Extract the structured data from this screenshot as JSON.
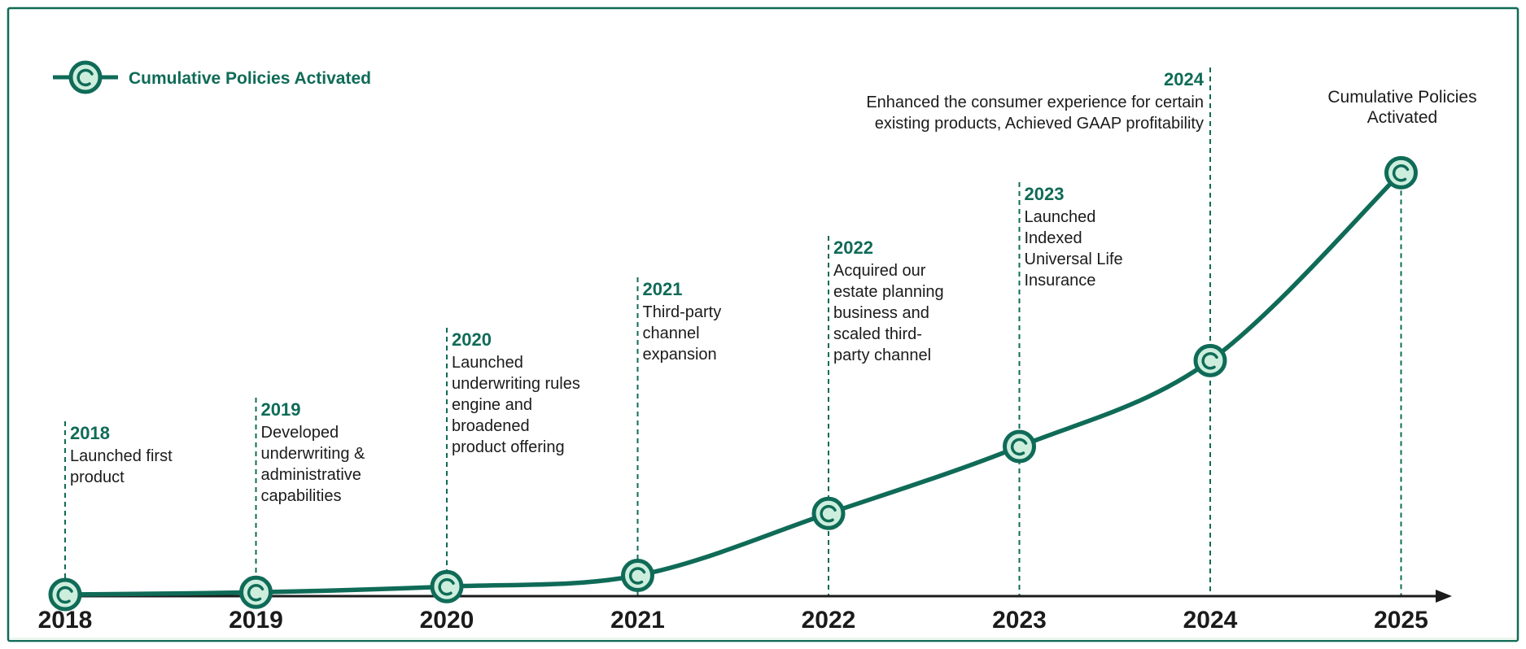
{
  "colors": {
    "frame": "#0f6b57",
    "line": "#0f6b57",
    "marker_fill": "#cdeedd",
    "axis": "#1b1b1b",
    "text": "#1b1b1b",
    "accent_text": "#0f6b57",
    "bottom_band": "#eaf6ef"
  },
  "chart_data": {
    "type": "line",
    "title": "",
    "xlabel": "",
    "ylabel": "",
    "categories": [
      "2018",
      "2019",
      "2020",
      "2021",
      "2022",
      "2023",
      "2024",
      "2025"
    ],
    "series": [
      {
        "name": "Cumulative Policies Activated",
        "x": [
          2018,
          2019,
          2020,
          2021,
          2022,
          2023,
          2024,
          2025
        ],
        "values": [
          0.5,
          1.2,
          3.0,
          6.5,
          26,
          47,
          74,
          133
        ]
      }
    ],
    "ylim": [
      0,
      140
    ],
    "grid": false,
    "legend": {
      "position": "top-left",
      "label": "Cumulative Policies Activated"
    },
    "end_label": [
      "Cumulative Policies",
      "Activated"
    ],
    "events": [
      {
        "year": "2018",
        "lines": [
          "Launched first",
          "product"
        ]
      },
      {
        "year": "2019",
        "lines": [
          "Developed",
          "underwriting &",
          "administrative",
          "capabilities"
        ]
      },
      {
        "year": "2020",
        "lines": [
          "Launched",
          "underwriting rules",
          "engine and",
          "broadened",
          "product offering"
        ]
      },
      {
        "year": "2021",
        "lines": [
          "Third-party",
          "channel",
          "expansion"
        ]
      },
      {
        "year": "2022",
        "lines": [
          "Acquired our",
          "estate planning",
          "business and",
          "scaled third-",
          "party channel"
        ]
      },
      {
        "year": "2023",
        "lines": [
          "Launched",
          "Indexed",
          "Universal Life",
          "Insurance"
        ]
      },
      {
        "year": "2024",
        "lines": [
          "Enhanced the consumer experience for certain",
          "existing products, Achieved GAAP profitability"
        ]
      }
    ]
  }
}
